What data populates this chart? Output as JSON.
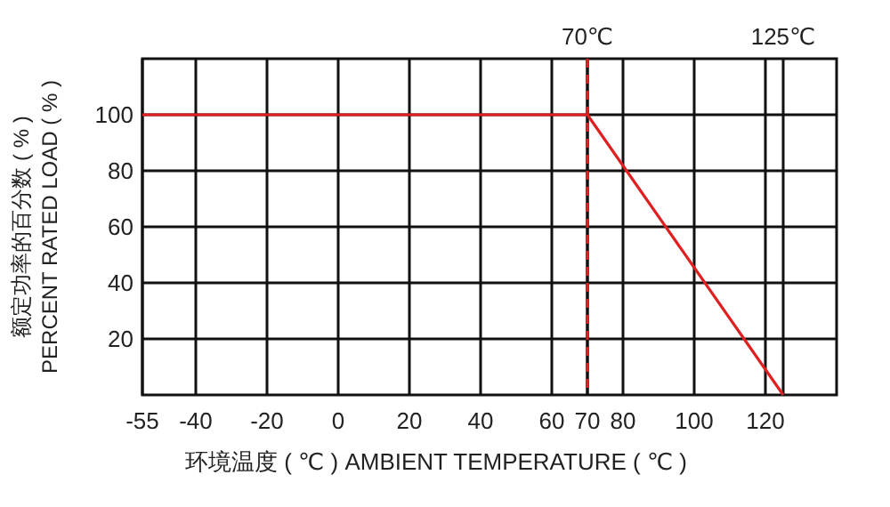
{
  "chart_data": {
    "type": "line",
    "xlabel": "环境温度 ( ℃ )  AMBIENT TEMPERATURE ( ℃ )",
    "ylabel": "额定功率的百分数 ( % )\nPERCENT RATED LOAD ( % )",
    "x": [
      -55,
      70,
      125
    ],
    "series": [
      {
        "color": "#e02020",
        "values": [
          100,
          100,
          0
        ]
      }
    ],
    "xlim": [
      -55,
      140
    ],
    "xticks": [
      -55,
      -40,
      -20,
      0,
      20,
      40,
      60,
      70,
      80,
      100,
      120
    ],
    "x2lim": [
      -55,
      140
    ],
    "x2ticks": [
      {
        "value": 70,
        "label": "70℃"
      },
      {
        "value": 125,
        "label": "125℃"
      }
    ],
    "ylim": [
      0,
      120
    ],
    "yticks": [
      20,
      40,
      60,
      80,
      100
    ],
    "ref_lines": [
      {
        "axis": "x",
        "value": 70,
        "color": "#e02020",
        "line_style": "dashed"
      }
    ],
    "grid": true,
    "marker": "none",
    "line_style": "solid"
  }
}
